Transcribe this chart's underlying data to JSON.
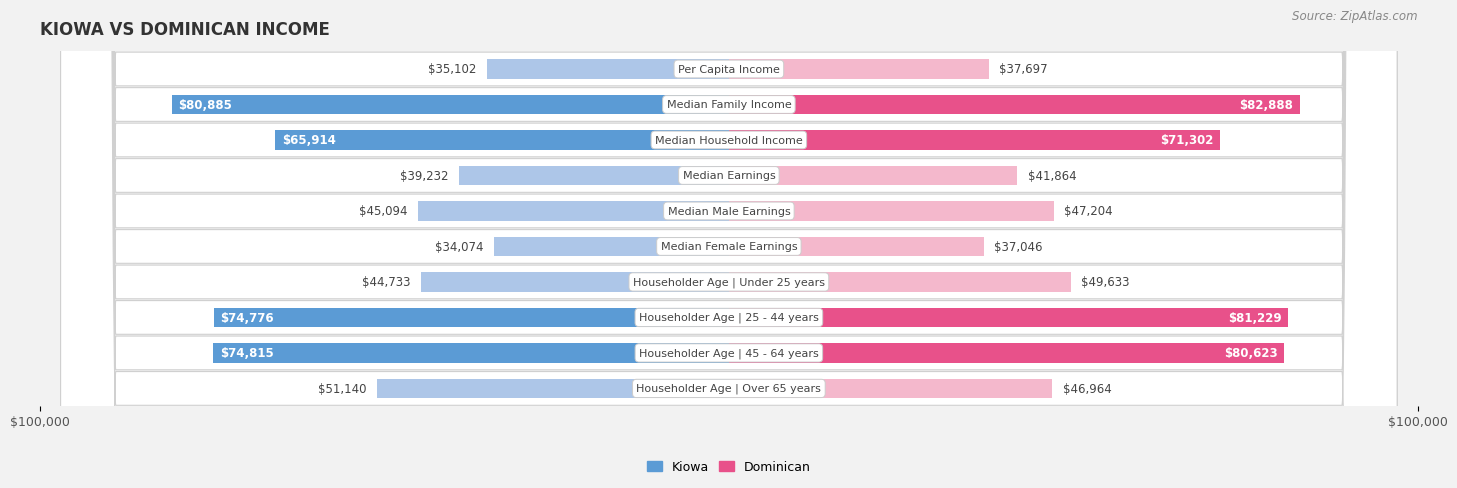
{
  "title": "KIOWA VS DOMINICAN INCOME",
  "source": "Source: ZipAtlas.com",
  "categories": [
    "Per Capita Income",
    "Median Family Income",
    "Median Household Income",
    "Median Earnings",
    "Median Male Earnings",
    "Median Female Earnings",
    "Householder Age | Under 25 years",
    "Householder Age | 25 - 44 years",
    "Householder Age | 45 - 64 years",
    "Householder Age | Over 65 years"
  ],
  "kiowa_values": [
    35102,
    80885,
    65914,
    39232,
    45094,
    34074,
    44733,
    74776,
    74815,
    51140
  ],
  "dominican_values": [
    37697,
    82888,
    71302,
    41864,
    47204,
    37046,
    49633,
    81229,
    80623,
    46964
  ],
  "kiowa_labels": [
    "$35,102",
    "$80,885",
    "$65,914",
    "$39,232",
    "$45,094",
    "$34,074",
    "$44,733",
    "$74,776",
    "$74,815",
    "$51,140"
  ],
  "dominican_labels": [
    "$37,697",
    "$82,888",
    "$71,302",
    "$41,864",
    "$47,204",
    "$37,046",
    "$49,633",
    "$81,229",
    "$80,623",
    "$46,964"
  ],
  "kiowa_color_light": "#adc6e8",
  "kiowa_color_dark": "#5b9bd5",
  "dominican_color_light": "#f4b8cc",
  "dominican_color_dark": "#e8518a",
  "max_value": 100000,
  "bg_color": "#f2f2f2",
  "row_bg_color": "#ffffff",
  "title_color": "#333333",
  "label_dark_color": "#ffffff",
  "label_light_color": "#444444",
  "threshold": 55000,
  "cat_label_color": "#444444",
  "cat_box_color": "#ffffff",
  "cat_box_edge": "#cccccc",
  "axis_label_color": "#555555",
  "source_color": "#888888",
  "legend_kiowa": "Kiowa",
  "legend_dominican": "Dominican"
}
